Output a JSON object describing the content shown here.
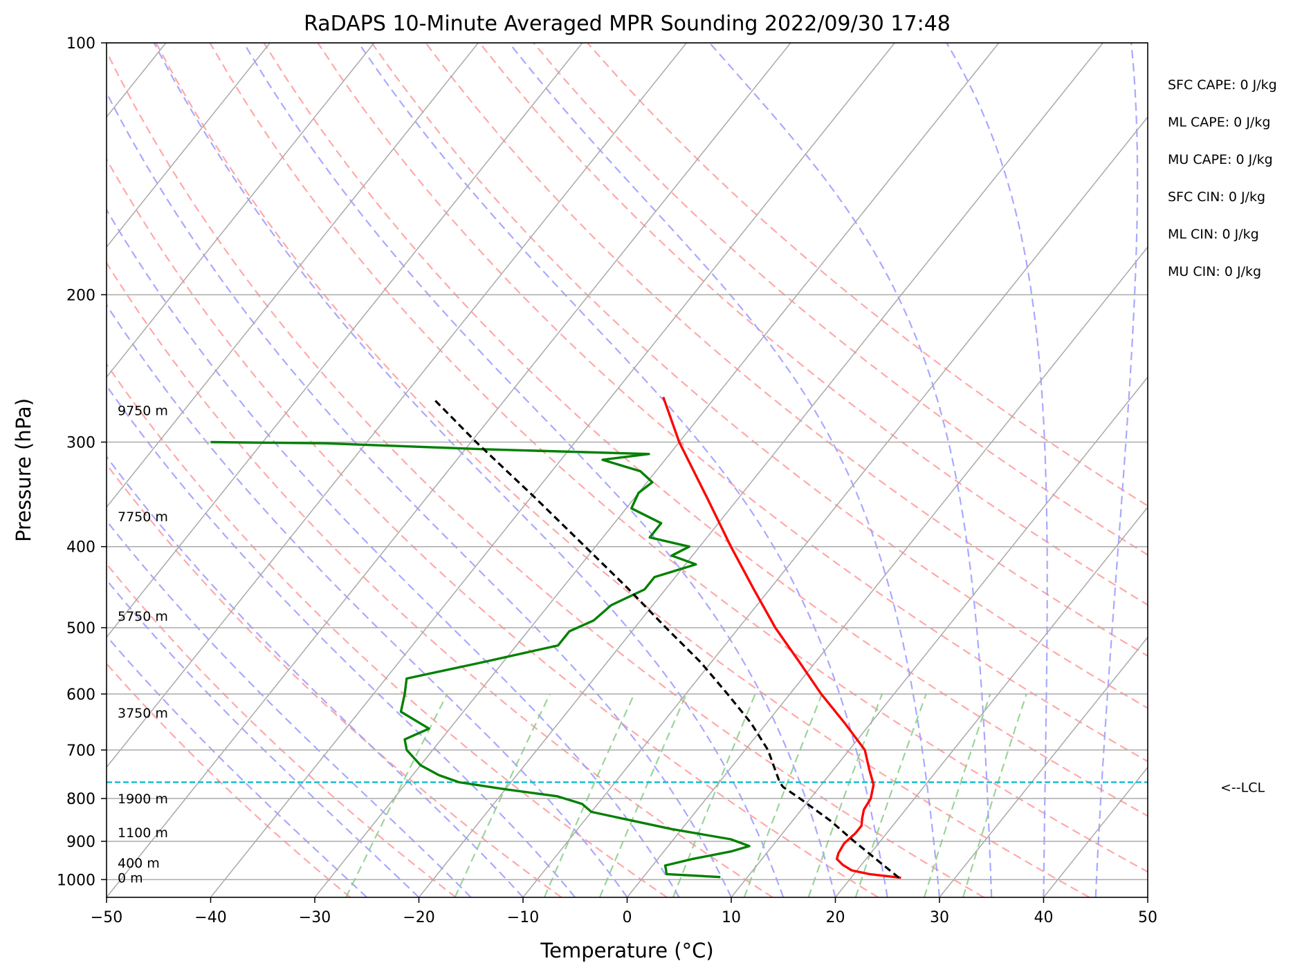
{
  "chart_data": {
    "type": "skew-t",
    "title": "RaDAPS 10-Minute Averaged MPR Sounding 2022/09/30 17:48",
    "xlabel": "Temperature (°C)",
    "ylabel": "Pressure (hPa)",
    "xlim": [
      -50,
      50
    ],
    "ylim": [
      1050,
      100
    ],
    "x_ticks": [
      -50,
      -40,
      -30,
      -20,
      -10,
      0,
      10,
      20,
      30,
      40,
      50
    ],
    "x_tick_labels": [
      "−50",
      "−40",
      "−30",
      "−20",
      "−10",
      "0",
      "10",
      "20",
      "30",
      "40",
      "50"
    ],
    "y_ticks": [
      100,
      200,
      300,
      400,
      500,
      600,
      700,
      800,
      900,
      1000
    ],
    "y_tick_labels": [
      "100",
      "200",
      "300",
      "400",
      "500",
      "600",
      "700",
      "800",
      "900",
      "1000"
    ],
    "grid": true,
    "colors": {
      "temperature": "#ff0000",
      "dewpoint": "#008000",
      "parcel": "#000000",
      "lcl": "#17becf",
      "dry_adiabats": "#ff9999",
      "moist_adiabats": "#9999ff",
      "mixing_ratio": "#88cc88",
      "isotherms": "#aaaaaa"
    },
    "series": [
      {
        "key": "temperature",
        "points": [
          {
            "p": 995,
            "t": 24.8
          },
          {
            "p": 985,
            "t": 21.5
          },
          {
            "p": 975,
            "t": 19.5
          },
          {
            "p": 960,
            "t": 18.2
          },
          {
            "p": 945,
            "t": 17.2
          },
          {
            "p": 930,
            "t": 16.9
          },
          {
            "p": 905,
            "t": 16.7
          },
          {
            "p": 880,
            "t": 17.0
          },
          {
            "p": 862,
            "t": 17.0
          },
          {
            "p": 845,
            "t": 16.5
          },
          {
            "p": 825,
            "t": 16.0
          },
          {
            "p": 800,
            "t": 15.8
          },
          {
            "p": 770,
            "t": 15.0
          },
          {
            "p": 740,
            "t": 13.5
          },
          {
            "p": 700,
            "t": 11.5
          },
          {
            "p": 650,
            "t": 7.5
          },
          {
            "p": 600,
            "t": 3.0
          },
          {
            "p": 550,
            "t": -1.5
          },
          {
            "p": 500,
            "t": -6.5
          },
          {
            "p": 450,
            "t": -11.5
          },
          {
            "p": 400,
            "t": -17.0
          },
          {
            "p": 350,
            "t": -23.0
          },
          {
            "p": 300,
            "t": -30.0
          },
          {
            "p": 265,
            "t": -35.0
          }
        ]
      },
      {
        "key": "dewpoint",
        "points": [
          {
            "p": 993,
            "t": 7.4
          },
          {
            "p": 985,
            "t": 2.0
          },
          {
            "p": 970,
            "t": 1.5
          },
          {
            "p": 962,
            "t": 1.2
          },
          {
            "p": 945,
            "t": 3.3
          },
          {
            "p": 925,
            "t": 6.5
          },
          {
            "p": 912,
            "t": 7.8
          },
          {
            "p": 895,
            "t": 5.5
          },
          {
            "p": 870,
            "t": -1.0
          },
          {
            "p": 830,
            "t": -10.0
          },
          {
            "p": 812,
            "t": -11.5
          },
          {
            "p": 795,
            "t": -14.5
          },
          {
            "p": 780,
            "t": -20.0
          },
          {
            "p": 765,
            "t": -25.0
          },
          {
            "p": 750,
            "t": -27.5
          },
          {
            "p": 730,
            "t": -30.0
          },
          {
            "p": 700,
            "t": -32.5
          },
          {
            "p": 680,
            "t": -33.5
          },
          {
            "p": 660,
            "t": -32.0
          },
          {
            "p": 630,
            "t": -36.0
          },
          {
            "p": 600,
            "t": -37.0
          },
          {
            "p": 575,
            "t": -38.0
          },
          {
            "p": 550,
            "t": -32.0
          },
          {
            "p": 525,
            "t": -26.0
          },
          {
            "p": 505,
            "t": -26.0
          },
          {
            "p": 490,
            "t": -24.5
          },
          {
            "p": 470,
            "t": -24.0
          },
          {
            "p": 450,
            "t": -22.0
          },
          {
            "p": 435,
            "t": -22.0
          },
          {
            "p": 420,
            "t": -19.0
          },
          {
            "p": 410,
            "t": -22.0
          },
          {
            "p": 400,
            "t": -21.0
          },
          {
            "p": 390,
            "t": -25.5
          },
          {
            "p": 375,
            "t": -25.5
          },
          {
            "p": 360,
            "t": -29.5
          },
          {
            "p": 345,
            "t": -30.0
          },
          {
            "p": 335,
            "t": -29.5
          },
          {
            "p": 325,
            "t": -31.5
          },
          {
            "p": 315,
            "t": -36.0
          },
          {
            "p": 310,
            "t": -32.0
          },
          {
            "p": 306,
            "t": -48.0
          },
          {
            "p": 301,
            "t": -64.0
          },
          {
            "p": 300,
            "t": -75.0
          }
        ]
      },
      {
        "key": "parcel",
        "points": [
          {
            "p": 995,
            "t": 24.6
          },
          {
            "p": 900,
            "t": 17.5
          },
          {
            "p": 850,
            "t": 13.6
          },
          {
            "p": 800,
            "t": 9.0
          },
          {
            "p": 775,
            "t": 6.5
          },
          {
            "p": 765,
            "t": 5.8
          },
          {
            "p": 700,
            "t": 2.2
          },
          {
            "p": 650,
            "t": -1.5
          },
          {
            "p": 600,
            "t": -6.0
          },
          {
            "p": 550,
            "t": -11.0
          },
          {
            "p": 500,
            "t": -17.0
          },
          {
            "p": 450,
            "t": -23.5
          },
          {
            "p": 400,
            "t": -31.0
          },
          {
            "p": 350,
            "t": -39.5
          },
          {
            "p": 300,
            "t": -49.5
          },
          {
            "p": 266,
            "t": -57.0
          }
        ]
      }
    ],
    "lcl": {
      "pressure": 765,
      "label": "<--LCL"
    },
    "height_labels": [
      {
        "p": 995,
        "text": "0 m"
      },
      {
        "p": 955,
        "text": "400 m"
      },
      {
        "p": 878,
        "text": "1100 m"
      },
      {
        "p": 800,
        "text": "1900 m"
      },
      {
        "p": 632,
        "text": "3750 m"
      },
      {
        "p": 484,
        "text": "5750 m"
      },
      {
        "p": 368,
        "text": "7750 m"
      },
      {
        "p": 275,
        "text": "9750 m"
      }
    ],
    "indices": [
      "SFC CAPE: 0 J/kg",
      "ML CAPE: 0 J/kg",
      "MU CAPE: 0 J/kg",
      "SFC CIN: 0 J/kg",
      "ML CIN: 0 J/kg",
      "MU CIN: 0 J/kg"
    ],
    "dry_adiabat_thetas": [
      -30,
      -20,
      -10,
      0,
      10,
      20,
      30,
      40,
      50,
      60,
      70,
      80,
      90,
      100,
      110,
      120
    ],
    "moist_adiabat_starts": [
      -25,
      -20,
      -15,
      -10,
      -5,
      0,
      5,
      10,
      15,
      20,
      25,
      30,
      35,
      40,
      45
    ],
    "mixing_ratios": [
      0.4,
      1,
      2,
      3,
      5,
      8,
      12,
      16,
      24,
      30
    ],
    "mixing_ratio_top": 600
  }
}
